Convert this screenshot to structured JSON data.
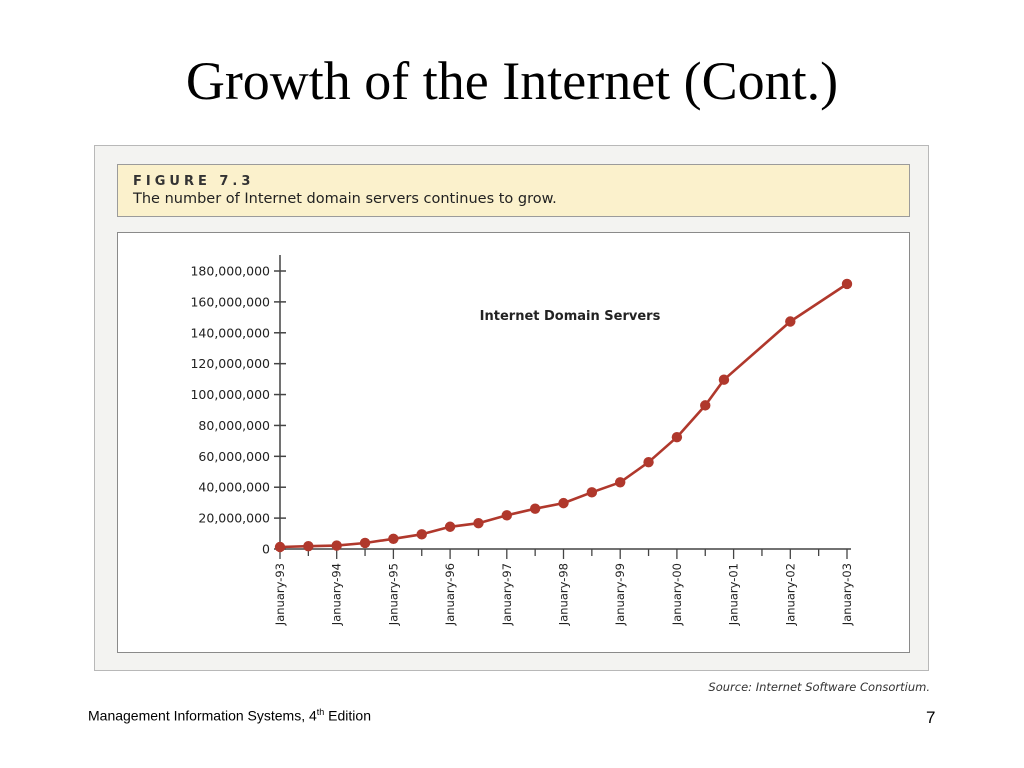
{
  "slide": {
    "title": "Growth of the Internet (Cont.)",
    "footer_text": "Management Information Systems, 4",
    "footer_sup": "th",
    "footer_suffix": " Edition",
    "page_number": "7"
  },
  "figure": {
    "label": "FIGURE 7.3",
    "caption": "The number of Internet domain servers continues to grow.",
    "source": "Source: Internet Software Consortium."
  },
  "colors": {
    "series": "#b0382c",
    "caption_bg": "#fbf1cc",
    "panel_bg": "#f3f3f1",
    "axis": "#444444"
  },
  "chart_data": {
    "type": "line",
    "title": "Internet Domain Servers",
    "xlabel": "",
    "ylabel": "",
    "ylim": [
      0,
      180000000
    ],
    "grid": false,
    "y_ticks": [
      0,
      20000000,
      40000000,
      60000000,
      80000000,
      100000000,
      120000000,
      140000000,
      160000000,
      180000000
    ],
    "y_tick_labels": [
      "0",
      "20,000,000",
      "40,000,000",
      "60,000,000",
      "80,000,000",
      "100,000,000",
      "120,000,000",
      "140,000,000",
      "160,000,000",
      "180,000,000"
    ],
    "x_tick_labels": [
      "January-93",
      "January-94",
      "January-95",
      "January-96",
      "January-97",
      "January-98",
      "January-99",
      "January-00",
      "January-01",
      "January-02",
      "January-03"
    ],
    "series": [
      {
        "x": [
          1993.0,
          1993.5,
          1994.0,
          1994.5,
          1995.0,
          1995.5,
          1996.0,
          1996.5,
          1997.0,
          1997.5,
          1998.0,
          1998.5,
          1999.0,
          1999.5,
          2000.0,
          2000.5,
          2000.83,
          2002.0,
          2003.0
        ],
        "values": [
          1300000,
          1800000,
          2200000,
          3900000,
          6600000,
          9500000,
          14400000,
          16700000,
          21800000,
          26100000,
          29700000,
          36700000,
          43200000,
          56200000,
          72400000,
          93000000,
          109600000,
          147300000,
          171600000
        ]
      }
    ]
  }
}
